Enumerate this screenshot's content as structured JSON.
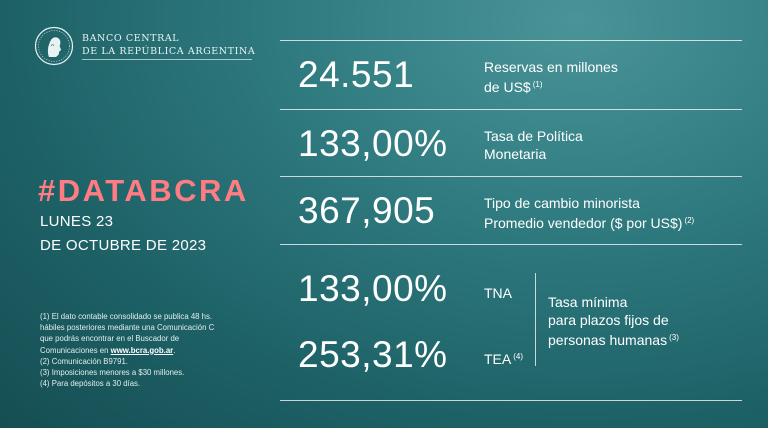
{
  "header": {
    "bank_line1": "BANCO CENTRAL",
    "bank_line2": "DE LA REPÚBLICA ARGENTINA"
  },
  "left": {
    "hashtag": "#DATABCRA",
    "date_line1": "LUNES 23",
    "date_line2": "DE OCTUBRE DE 2023"
  },
  "notes": {
    "n1_line1": "(1) El dato contable consolidado se publica 48 hs.",
    "n1_line2": "hábiles posteriores mediante una Comunicación C",
    "n1_line3": "que podrás encontrar en el Buscador de",
    "n1_line4_prefix": "Comunicaciones en ",
    "n1_link": "www.bcra.gob.ar",
    "n1_line4_suffix": ".",
    "n2": "(2) Comunicación B9791.",
    "n3": "(3) Imposiciones menores a $30 millones.",
    "n4": "(4) Para depósitos a 30 días."
  },
  "indicators": {
    "reserves": {
      "value": "24.551",
      "label_line1": "Reservas en millones",
      "label_line2": "de US$",
      "note": "(1)"
    },
    "policy_rate": {
      "value": "133,00%",
      "label_line1": "Tasa de Política",
      "label_line2": "Monetaria"
    },
    "exchange_rate": {
      "value": "367,905",
      "label_line1": "Tipo de cambio minorista",
      "label_line2": "Promedio vendedor ($ por US$)",
      "note": "(2)"
    },
    "fixed_deposit": {
      "tna_value": "133,00%",
      "tna_label": "TNA",
      "tea_value": "253,31%",
      "tea_label": "TEA",
      "tea_note": "(4)",
      "desc_line1": "Tasa mínima",
      "desc_line2": "para plazos fijos de",
      "desc_line3": "personas humanas",
      "desc_note": "(3)"
    }
  }
}
